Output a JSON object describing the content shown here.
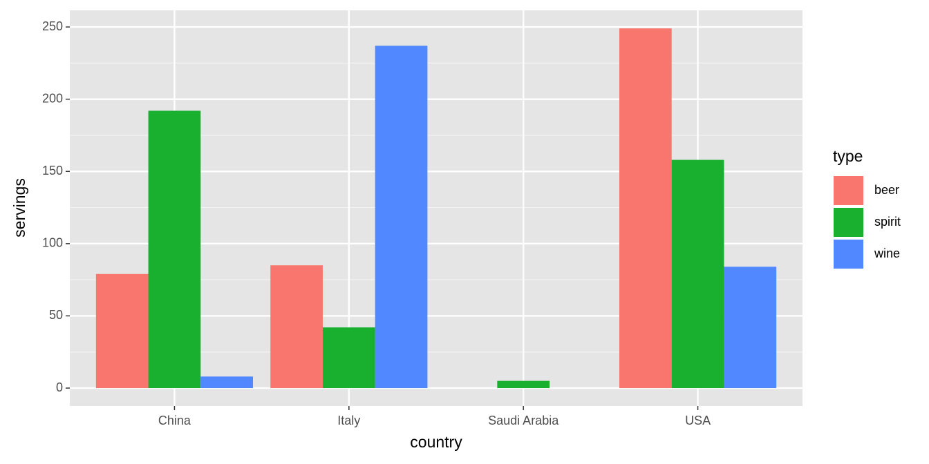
{
  "chart_data": {
    "type": "bar",
    "x_label": "country",
    "y_label": "servings",
    "categories": [
      "China",
      "Italy",
      "Saudi Arabia",
      "USA"
    ],
    "series": [
      {
        "name": "beer",
        "color": "#f8766d",
        "values": [
          79,
          85,
          0,
          249
        ]
      },
      {
        "name": "spirit",
        "color": "#19b030",
        "values": [
          192,
          42,
          5,
          158
        ]
      },
      {
        "name": "wine",
        "color": "#5288ff",
        "values": [
          8,
          237,
          0,
          84
        ]
      }
    ],
    "ylim": [
      -12.4,
      261.5
    ],
    "yticks": [
      0,
      50,
      100,
      150,
      200,
      250
    ],
    "grid": true,
    "legend_title": "type",
    "legend_position": "right"
  }
}
